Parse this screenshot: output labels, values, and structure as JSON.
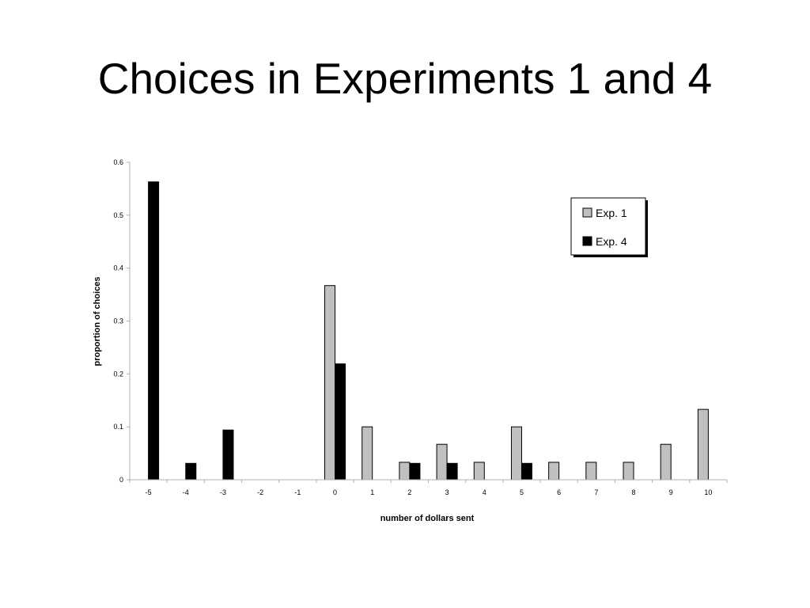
{
  "slide": {
    "title": "Choices in Experiments 1 and 4"
  },
  "chart_data": {
    "type": "bar",
    "title": "",
    "xlabel": "number of dollars sent",
    "ylabel": "proportion of choices",
    "ylim": [
      0,
      0.6
    ],
    "yticks": [
      "0",
      "0.1",
      "0.2",
      "0.3",
      "0.4",
      "0.5",
      "0.6"
    ],
    "categories": [
      "-5",
      "-4",
      "-3",
      "-2",
      "-1",
      "0",
      "1",
      "2",
      "3",
      "4",
      "5",
      "6",
      "7",
      "8",
      "9",
      "10"
    ],
    "series": [
      {
        "name": "Exp. 1",
        "color": "#c0c0c0",
        "values": [
          0,
          0,
          0,
          0,
          0,
          0.367,
          0.1,
          0.033,
          0.067,
          0.033,
          0.1,
          0.033,
          0.033,
          0.033,
          0.067,
          0.133
        ]
      },
      {
        "name": "Exp. 4",
        "color": "#000000",
        "values": [
          0.563,
          0.031,
          0.094,
          0,
          0,
          0.219,
          0,
          0.031,
          0.031,
          0,
          0.031,
          0,
          0,
          0,
          0,
          0
        ]
      }
    ],
    "grid": false,
    "legend_position": "top-right"
  }
}
